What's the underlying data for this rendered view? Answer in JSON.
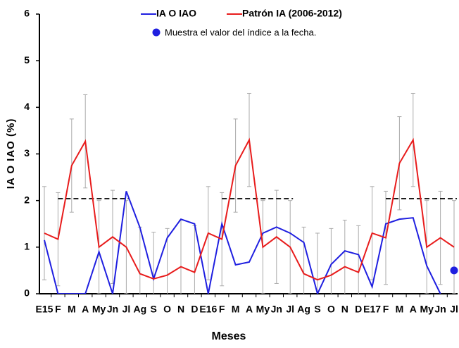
{
  "chart_data": {
    "type": "line",
    "x_label": "Meses",
    "y_label": "IA O IAO (%)",
    "categories": [
      "E15",
      "F",
      "M",
      "A",
      "My",
      "Jn",
      "Jl",
      "Ag",
      "S",
      "O",
      "N",
      "D",
      "E16",
      "F",
      "M",
      "A",
      "My",
      "Jn",
      "Jl",
      "Ag",
      "S",
      "O",
      "N",
      "D",
      "E17",
      "F",
      "M",
      "A",
      "My",
      "Jn",
      "Jl"
    ],
    "ylim": [
      0,
      6
    ],
    "yticks": [
      0,
      1,
      2,
      3,
      4,
      5,
      6
    ],
    "series": [
      {
        "name": "IA O IAO",
        "color": "#1f1fe0",
        "style": "line",
        "values": [
          1.15,
          0,
          0,
          0,
          0.9,
          0,
          2.2,
          1.42,
          0.32,
          1.2,
          1.6,
          1.5,
          0,
          1.5,
          0.62,
          0.68,
          1.3,
          1.43,
          1.3,
          1.1,
          0,
          0.63,
          0.92,
          0.84,
          0.15,
          1.5,
          1.6,
          1.63,
          0.6,
          0,
          null
        ]
      },
      {
        "name": "Patrón IA (2006-2012)",
        "color": "#e81c1c",
        "style": "line",
        "values": [
          1.3,
          1.17,
          2.75,
          3.27,
          1.0,
          1.22,
          1.0,
          0.43,
          0.32,
          0.4,
          0.58,
          0.46,
          1.3,
          1.17,
          2.75,
          3.3,
          1.0,
          1.22,
          1.0,
          0.43,
          0.3,
          0.4,
          0.58,
          0.46,
          1.3,
          1.2,
          2.8,
          3.3,
          1.0,
          1.2,
          1.0
        ],
        "errors": [
          1,
          1,
          1,
          1,
          1,
          1,
          1,
          1,
          1,
          1,
          1,
          1,
          1,
          1,
          1,
          1,
          1,
          1,
          1,
          1,
          1,
          1,
          1,
          1,
          1,
          1,
          1,
          1,
          1,
          1,
          1
        ]
      },
      {
        "name": "Muestra el valor del índice a la fecha.",
        "color": "#1f1fe0",
        "style": "dot",
        "values": [
          null,
          null,
          null,
          null,
          null,
          null,
          null,
          null,
          null,
          null,
          null,
          null,
          null,
          null,
          null,
          null,
          null,
          null,
          null,
          null,
          null,
          null,
          null,
          null,
          null,
          null,
          null,
          null,
          null,
          null,
          0.5
        ]
      }
    ],
    "reference_lines": [
      {
        "value": 2.04,
        "start_index": 1,
        "end_index": 6
      },
      {
        "value": 2.04,
        "start_index": 13,
        "end_index": 18
      },
      {
        "value": 2.04,
        "start_index": 25,
        "end_index": 30
      }
    ]
  }
}
